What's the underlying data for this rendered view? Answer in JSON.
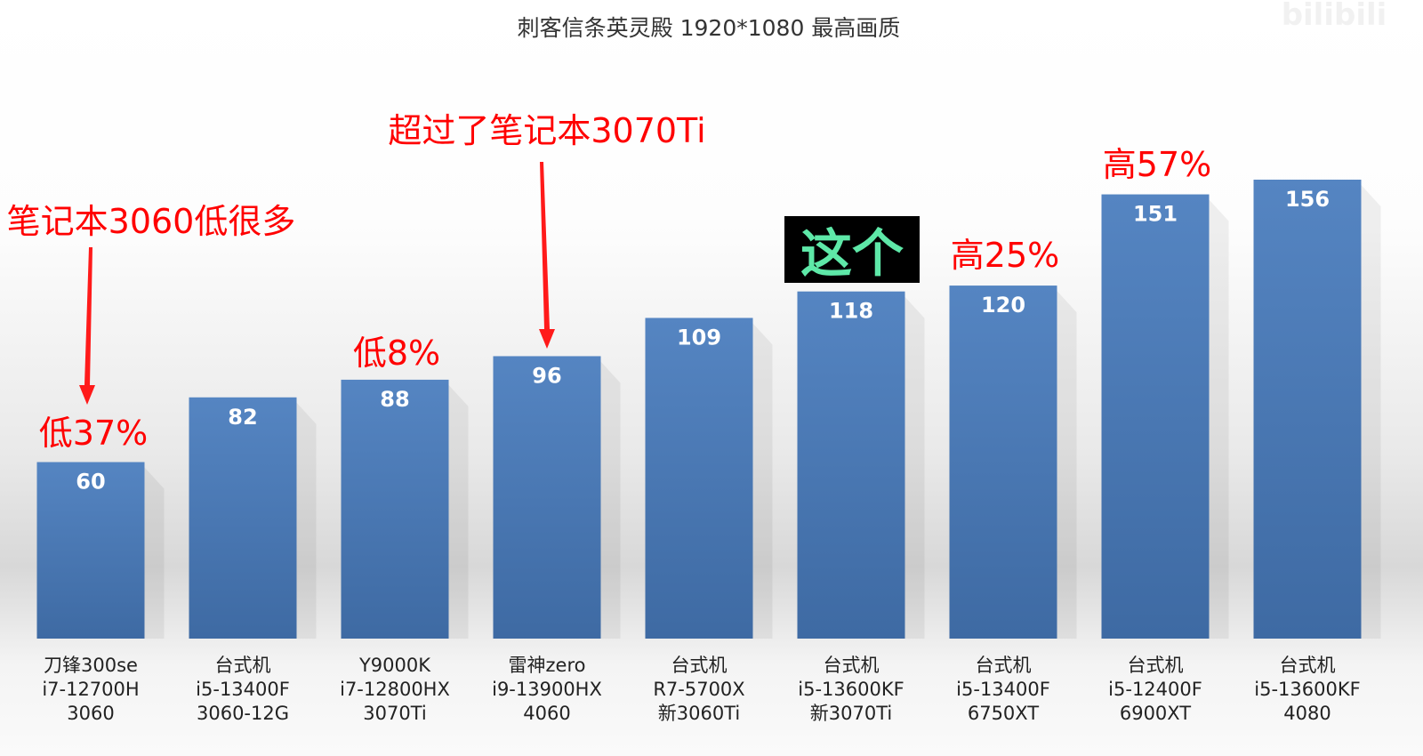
{
  "chart_data": {
    "type": "bar",
    "title": "刺客信条英灵殿 1920*1080 最高画质",
    "categories": [
      [
        "刀锋300se",
        "i7-12700H",
        "3060"
      ],
      [
        "台式机",
        "i5-13400F",
        "3060-12G"
      ],
      [
        "Y9000K",
        "i7-12800HX",
        "3070Ti"
      ],
      [
        "雷神zero",
        "i9-13900HX",
        "4060"
      ],
      [
        "台式机",
        "R7-5700X",
        "新3060Ti"
      ],
      [
        "台式机",
        "i5-13600KF",
        "新3070Ti"
      ],
      [
        "台式机",
        "i5-13400F",
        "6750XT"
      ],
      [
        "台式机",
        "i5-12400F",
        "6900XT"
      ],
      [
        "台式机",
        "i5-13600KF",
        "4080"
      ]
    ],
    "values": [
      60,
      82,
      88,
      96,
      109,
      118,
      120,
      151,
      156
    ],
    "ylim": [
      0,
      160
    ],
    "grid": false,
    "bar_color": "#4f81bd",
    "annotations": [
      {
        "text": "笔记本3060低很多",
        "bar": 0,
        "color": "#ff0000",
        "arrow": true
      },
      {
        "text": "低37%",
        "bar": 0,
        "color": "#ff0000"
      },
      {
        "text": "低8%",
        "bar": 2,
        "color": "#ff0000"
      },
      {
        "text": "超过了笔记本3070Ti",
        "bar": 3,
        "color": "#ff0000",
        "arrow": true
      },
      {
        "text": "这个",
        "bar": 5,
        "color": "#5ee8a8",
        "background": "#000000"
      },
      {
        "text": "高25%",
        "bar": 6,
        "color": "#ff0000"
      },
      {
        "text": "高57%",
        "bar": 7,
        "color": "#ff0000"
      }
    ]
  },
  "watermark": "bilibili"
}
